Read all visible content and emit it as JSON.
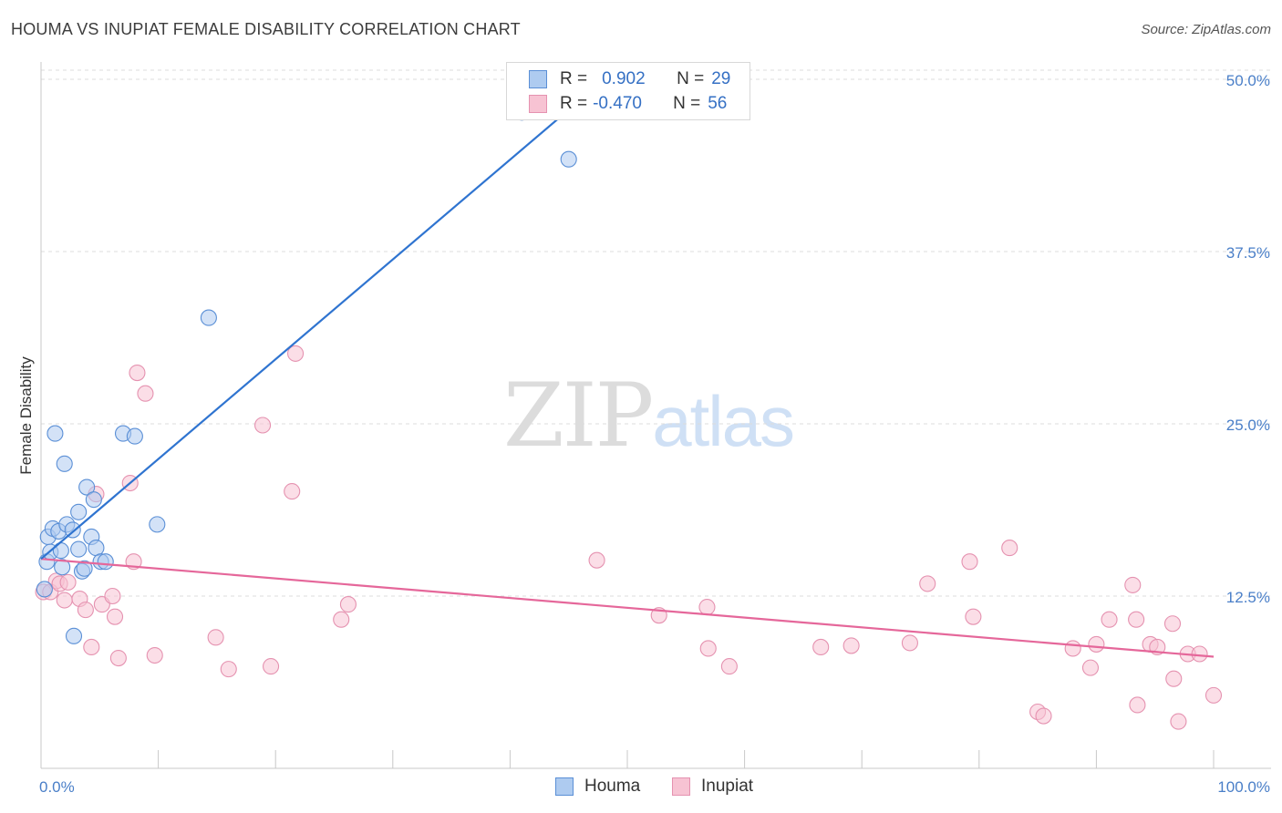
{
  "title": "HOUMA VS INUPIAT FEMALE DISABILITY CORRELATION CHART",
  "source": "Source: ZipAtlas.com",
  "watermark": {
    "zip": "ZIP",
    "atlas": "atlas"
  },
  "legend_top": {
    "rows": [
      {
        "r_label": "R =",
        "r_value": "0.902",
        "n_label": "N =",
        "n_value": "29"
      },
      {
        "r_label": "R =",
        "r_value": "-0.470",
        "n_label": "N =",
        "n_value": "56"
      }
    ]
  },
  "legend_bottom": [
    "Houma",
    "Inupiat"
  ],
  "chart_data": {
    "type": "scatter",
    "xlabel": "",
    "ylabel": "Female Disability",
    "xlim": [
      0,
      100
    ],
    "ylim": [
      0,
      50
    ],
    "x_ticks": [
      "0.0%",
      "100.0%"
    ],
    "y_ticks": [
      "12.5%",
      "25.0%",
      "37.5%",
      "50.0%"
    ],
    "y_tick_values": [
      12.5,
      25.0,
      37.5,
      50.0
    ],
    "grid": "horizontal dashed",
    "legend_position": "bottom-center",
    "colors": {
      "houma_fill": "#aecbf0",
      "houma_edge": "#5a8fd6",
      "houma_line": "#2f74d0",
      "inupiat_fill": "#f7c3d3",
      "inupiat_edge": "#e592b0",
      "inupiat_line": "#e5679a"
    },
    "series": [
      {
        "name": "Houma",
        "trend": {
          "x": [
            0,
            47.5
          ],
          "y": [
            15.2,
            49.6
          ]
        },
        "points": [
          [
            0.3,
            13.0
          ],
          [
            0.5,
            15.0
          ],
          [
            0.6,
            16.8
          ],
          [
            0.8,
            15.7
          ],
          [
            1.0,
            17.4
          ],
          [
            1.2,
            24.3
          ],
          [
            1.5,
            17.2
          ],
          [
            1.7,
            15.8
          ],
          [
            1.8,
            14.6
          ],
          [
            2.0,
            22.1
          ],
          [
            2.2,
            17.7
          ],
          [
            2.8,
            9.6
          ],
          [
            2.7,
            17.3
          ],
          [
            3.2,
            15.9
          ],
          [
            3.2,
            18.6
          ],
          [
            3.5,
            14.3
          ],
          [
            3.7,
            14.5
          ],
          [
            3.9,
            20.4
          ],
          [
            4.3,
            16.8
          ],
          [
            4.5,
            19.5
          ],
          [
            4.7,
            16.0
          ],
          [
            5.1,
            15.0
          ],
          [
            5.5,
            15.0
          ],
          [
            7.0,
            24.3
          ],
          [
            8.0,
            24.1
          ],
          [
            9.9,
            17.7
          ],
          [
            14.3,
            32.7
          ],
          [
            41.0,
            47.6
          ],
          [
            45.0,
            44.2
          ]
        ]
      },
      {
        "name": "Inupiat",
        "trend": {
          "x": [
            0,
            100
          ],
          "y": [
            15.2,
            8.1
          ]
        },
        "points": [
          [
            0.2,
            12.8
          ],
          [
            0.8,
            12.8
          ],
          [
            1.3,
            13.6
          ],
          [
            1.6,
            13.4
          ],
          [
            2.0,
            12.2
          ],
          [
            2.3,
            13.5
          ],
          [
            3.3,
            12.3
          ],
          [
            3.8,
            11.5
          ],
          [
            4.3,
            8.8
          ],
          [
            4.7,
            19.9
          ],
          [
            5.2,
            11.9
          ],
          [
            6.1,
            12.5
          ],
          [
            6.3,
            11.0
          ],
          [
            6.6,
            8.0
          ],
          [
            7.6,
            20.7
          ],
          [
            7.9,
            15.0
          ],
          [
            8.2,
            28.7
          ],
          [
            8.9,
            27.2
          ],
          [
            9.7,
            8.2
          ],
          [
            14.9,
            9.5
          ],
          [
            16.0,
            7.2
          ],
          [
            18.9,
            24.9
          ],
          [
            19.6,
            7.4
          ],
          [
            21.4,
            20.1
          ],
          [
            21.7,
            30.1
          ],
          [
            25.6,
            10.8
          ],
          [
            26.2,
            11.9
          ],
          [
            47.4,
            15.1
          ],
          [
            52.7,
            11.1
          ],
          [
            56.8,
            11.7
          ],
          [
            56.9,
            8.7
          ],
          [
            58.7,
            7.4
          ],
          [
            66.5,
            8.8
          ],
          [
            69.1,
            8.9
          ],
          [
            74.1,
            9.1
          ],
          [
            75.6,
            13.4
          ],
          [
            79.2,
            15.0
          ],
          [
            79.5,
            11.0
          ],
          [
            82.6,
            16.0
          ],
          [
            85.0,
            4.1
          ],
          [
            85.5,
            3.8
          ],
          [
            88.0,
            8.7
          ],
          [
            89.5,
            7.3
          ],
          [
            90.0,
            9.0
          ],
          [
            91.1,
            10.8
          ],
          [
            93.1,
            13.3
          ],
          [
            93.4,
            10.8
          ],
          [
            93.5,
            4.6
          ],
          [
            94.6,
            9.0
          ],
          [
            95.2,
            8.8
          ],
          [
            96.5,
            10.5
          ],
          [
            96.6,
            6.5
          ],
          [
            97.0,
            3.4
          ],
          [
            97.8,
            8.3
          ],
          [
            98.8,
            8.3
          ],
          [
            100.0,
            5.3
          ]
        ]
      }
    ]
  }
}
